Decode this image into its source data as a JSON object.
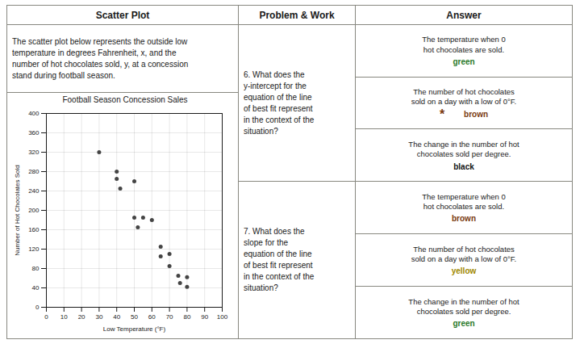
{
  "chart_data": {
    "type": "scatter",
    "title": "Football Season Concession Sales",
    "xlabel": "Low Temperature (°F)",
    "ylabel": "Number of Hot Chocolates Sold",
    "x": [
      30,
      40,
      40,
      42,
      50,
      50,
      52,
      55,
      60,
      65,
      65,
      70,
      70,
      75,
      76,
      80,
      80
    ],
    "values": [
      320,
      280,
      265,
      245,
      260,
      185,
      165,
      185,
      180,
      125,
      105,
      110,
      85,
      65,
      50,
      62,
      42
    ],
    "color": "#444444",
    "xlim": [
      0,
      100
    ],
    "ylim": [
      0,
      400
    ],
    "xticks": [
      0,
      10,
      20,
      30,
      40,
      50,
      60,
      70,
      80,
      90,
      100
    ],
    "yticks": [
      0,
      40,
      80,
      120,
      160,
      200,
      240,
      280,
      320,
      360,
      400
    ],
    "grid": true,
    "annotations": [
      {
        "text": "Scatter Plot"
      },
      {
        "text": "Problem & Work"
      },
      {
        "text": "Answer"
      },
      {
        "text": "The scatter plot below represents the outside low\ntemperature in degrees Fahrenheit, x, and the\nnumber of hot chocolates sold, y, at a concession\nstand during football season."
      },
      {
        "text": "6. What does the\ny-intercept for the\nequation of the line\nof best fit represent\nin the context of the\nsituation?"
      },
      {
        "text": "7. What does the\nslope for the\nequation of the line\nof best fit represent\nin the context of the\nsituation?"
      },
      {
        "text": "The temperature when 0\nhot chocolates are sold."
      },
      {
        "text": "green",
        "color": "#2a7a2a"
      },
      {
        "text": "The number of hot chocolates\nsold on a day with a low of 0°F."
      },
      {
        "text": "*",
        "color": "#7a3a10"
      },
      {
        "text": "brown",
        "color": "#7a3a10"
      },
      {
        "text": "The change in the number of hot\nchocolates sold per degree."
      },
      {
        "text": "black",
        "color": "#111111"
      },
      {
        "text": "The temperature when 0\nhot chocolates are sold."
      },
      {
        "text": "brown",
        "color": "#7a3a10"
      },
      {
        "text": "The number of hot chocolates\nsold on a day with a low of 0°F."
      },
      {
        "text": "yellow",
        "color": "#a08800"
      },
      {
        "text": "The change in the number of hot\nchocolates sold per degree."
      },
      {
        "text": "green",
        "color": "#2a7a2a"
      }
    ]
  }
}
